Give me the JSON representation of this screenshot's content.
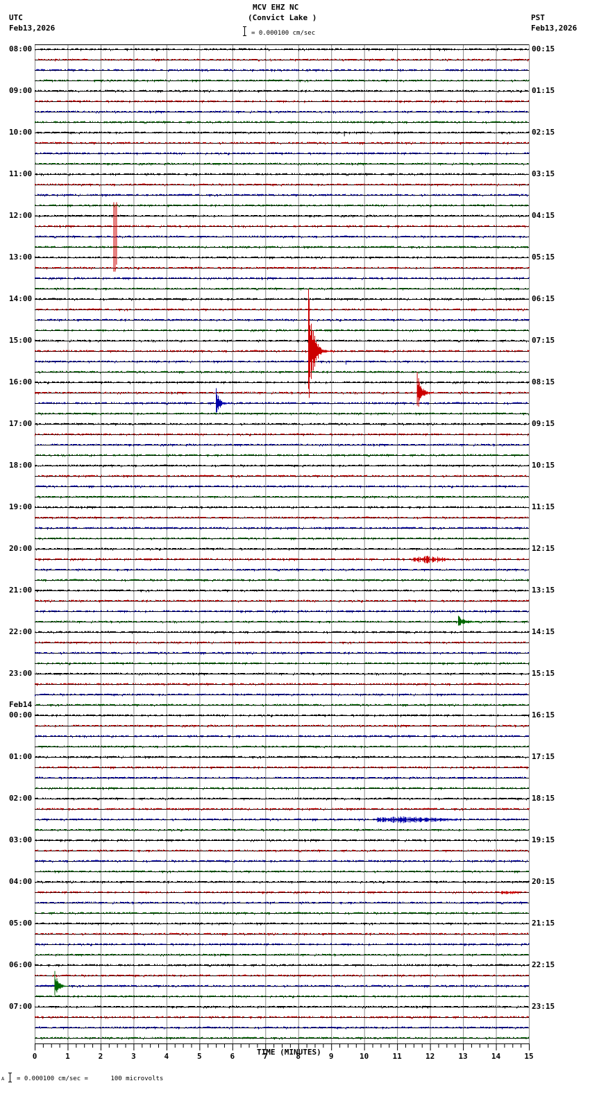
{
  "header": {
    "station": "MCV EHZ NC",
    "location": "(Convict Lake )",
    "scale_text": "= 0.000100 cm/sec",
    "left_tz": "UTC",
    "left_date": "Feb13,2026",
    "right_tz": "PST",
    "right_date": "Feb13,2026"
  },
  "footer": {
    "scale_text": "= 0.000100 cm/sec =      100 microvolts",
    "prefix": "A"
  },
  "colors": {
    "trace_cycle": [
      "#000000",
      "#cc0000",
      "#0000aa",
      "#006600"
    ],
    "grid": "#888888",
    "axis": "#000000"
  },
  "left_labels": [
    {
      "text": "08:00",
      "row": 0
    },
    {
      "text": "09:00",
      "row": 4
    },
    {
      "text": "10:00",
      "row": 8
    },
    {
      "text": "11:00",
      "row": 12
    },
    {
      "text": "12:00",
      "row": 16
    },
    {
      "text": "13:00",
      "row": 20
    },
    {
      "text": "14:00",
      "row": 24
    },
    {
      "text": "15:00",
      "row": 28
    },
    {
      "text": "16:00",
      "row": 32
    },
    {
      "text": "17:00",
      "row": 36
    },
    {
      "text": "18:00",
      "row": 40
    },
    {
      "text": "19:00",
      "row": 44
    },
    {
      "text": "20:00",
      "row": 48
    },
    {
      "text": "21:00",
      "row": 52
    },
    {
      "text": "22:00",
      "row": 56
    },
    {
      "text": "23:00",
      "row": 60
    },
    {
      "text": "00:00",
      "row": 64,
      "date": "Feb14"
    },
    {
      "text": "01:00",
      "row": 68
    },
    {
      "text": "02:00",
      "row": 72
    },
    {
      "text": "03:00",
      "row": 76
    },
    {
      "text": "04:00",
      "row": 80
    },
    {
      "text": "05:00",
      "row": 84
    },
    {
      "text": "06:00",
      "row": 88
    },
    {
      "text": "07:00",
      "row": 92
    }
  ],
  "right_labels": [
    {
      "text": "00:15",
      "row": 0
    },
    {
      "text": "01:15",
      "row": 4
    },
    {
      "text": "02:15",
      "row": 8
    },
    {
      "text": "03:15",
      "row": 12
    },
    {
      "text": "04:15",
      "row": 16
    },
    {
      "text": "05:15",
      "row": 20
    },
    {
      "text": "06:15",
      "row": 24
    },
    {
      "text": "07:15",
      "row": 28
    },
    {
      "text": "08:15",
      "row": 32
    },
    {
      "text": "09:15",
      "row": 36
    },
    {
      "text": "10:15",
      "row": 40
    },
    {
      "text": "11:15",
      "row": 44
    },
    {
      "text": "12:15",
      "row": 48
    },
    {
      "text": "13:15",
      "row": 52
    },
    {
      "text": "14:15",
      "row": 56
    },
    {
      "text": "15:15",
      "row": 60
    },
    {
      "text": "16:15",
      "row": 64
    },
    {
      "text": "17:15",
      "row": 68
    },
    {
      "text": "18:15",
      "row": 72
    },
    {
      "text": "19:15",
      "row": 76
    },
    {
      "text": "20:15",
      "row": 80
    },
    {
      "text": "21:15",
      "row": 84
    },
    {
      "text": "22:15",
      "row": 88
    },
    {
      "text": "23:15",
      "row": 92
    }
  ],
  "chart_data": {
    "type": "line",
    "title": "MCV EHZ NC (Convict Lake )",
    "subtitle": "= 0.000100 cm/sec",
    "xlabel": "TIME (MINUTES)",
    "ylabel": "",
    "x_ticks": [
      "0",
      "1",
      "2",
      "3",
      "4",
      "5",
      "6",
      "7",
      "8",
      "9",
      "10",
      "11",
      "12",
      "13",
      "14",
      "15"
    ],
    "xlim": [
      0,
      15
    ],
    "minor_ticks_per_minute": 4,
    "grid": true,
    "rows": 96,
    "minutes_per_row": 15,
    "start_utc": "Feb13,2026 08:00",
    "start_pst": "Feb13,2026 00:15",
    "events": [
      {
        "row": 8,
        "minute": 9.4,
        "amp": 5,
        "dur": 0.1,
        "type": "spike",
        "color_index": 0
      },
      {
        "row": 17,
        "minute": 2.4,
        "amp": 35,
        "dur": 0.15,
        "type": "clip",
        "color_index": 1
      },
      {
        "row": 29,
        "minute": 8.3,
        "amp": 90,
        "dur": 0.8,
        "type": "quake",
        "color_index": 1
      },
      {
        "row": 30,
        "minute": 9.45,
        "amp": 4,
        "dur": 0.1,
        "type": "spike",
        "color_index": 2
      },
      {
        "row": 34,
        "minute": 5.5,
        "amp": 22,
        "dur": 0.6,
        "type": "quake",
        "color_index": 2
      },
      {
        "row": 33,
        "minute": 11.6,
        "amp": 30,
        "dur": 0.7,
        "type": "quake",
        "color_index": 1
      },
      {
        "row": 49,
        "minute": 11.5,
        "amp": 6,
        "dur": 1.2,
        "type": "burst",
        "color_index": 1
      },
      {
        "row": 55,
        "minute": 12.85,
        "amp": 9,
        "dur": 1.2,
        "type": "quake",
        "color_index": 3
      },
      {
        "row": 74,
        "minute": 10.4,
        "amp": 5,
        "dur": 2.5,
        "type": "burst",
        "color_index": 2
      },
      {
        "row": 81,
        "minute": 14.1,
        "amp": 3,
        "dur": 0.6,
        "type": "burst",
        "color_index": 1
      },
      {
        "row": 90,
        "minute": 0.6,
        "amp": 22,
        "dur": 0.6,
        "type": "quake",
        "color_index": 3
      }
    ]
  }
}
